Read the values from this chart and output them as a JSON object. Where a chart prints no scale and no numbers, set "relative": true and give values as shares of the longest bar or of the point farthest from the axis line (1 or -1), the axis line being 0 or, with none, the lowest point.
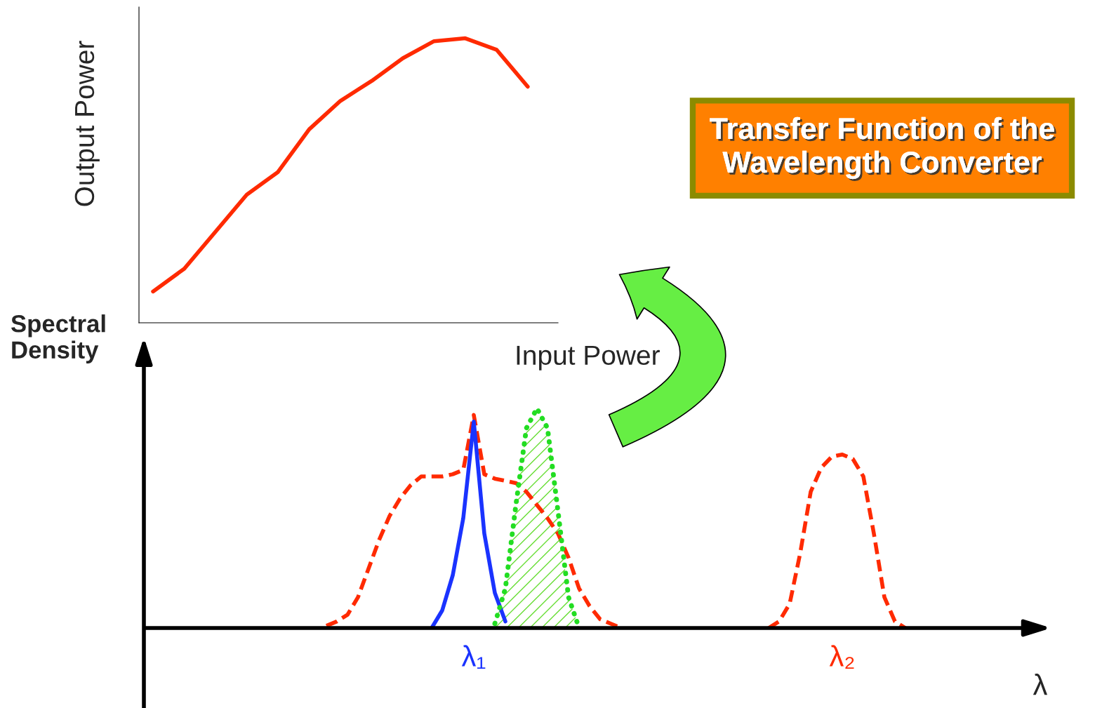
{
  "chart_data": [
    {
      "type": "line",
      "annotations": [
        "Transfer Function of the Wavelength Converter"
      ],
      "xlabel": "Input Power",
      "ylabel": "Output Power",
      "relative": true,
      "categories": [
        null,
        null,
        null,
        null,
        null,
        null,
        null,
        null,
        null,
        null,
        null,
        null,
        null
      ],
      "series": [
        {
          "color": "#ff2a00",
          "values": [
            0.11,
            0.19,
            0.32,
            0.45,
            0.53,
            0.68,
            0.78,
            0.85,
            0.93,
            0.99,
            1.0,
            0.96,
            0.83
          ]
        }
      ]
    },
    {
      "type": "line",
      "xlabel": "λ",
      "ylabel": "Spectral Density",
      "relative": true,
      "categories": [
        null,
        null,
        null,
        null,
        null,
        null,
        null,
        null,
        null,
        null,
        null,
        null,
        null,
        null,
        "λ₁",
        null,
        null,
        null,
        null,
        null,
        null,
        null,
        null,
        null,
        null,
        null,
        null,
        null,
        null,
        null,
        null,
        null,
        null,
        null,
        null,
        null,
        null,
        null,
        null,
        null,
        null,
        null,
        null,
        null,
        null,
        null,
        null,
        null,
        null,
        "λ₂",
        null,
        null,
        null,
        null,
        null,
        null,
        null
      ],
      "series": [
        {
          "type": "line",
          "line_style": "dashed",
          "color": "#ff2a00",
          "values": [
            0.01,
            0.03,
            0.06,
            0.14,
            0.27,
            0.4,
            0.51,
            0.59,
            0.65,
            0.69,
            0.69,
            0.69,
            0.7,
            0.72,
            0.97,
            0.7,
            0.68,
            0.67,
            0.66,
            0.62,
            0.56,
            0.5,
            0.43,
            0.32,
            0.18,
            0.1,
            0.04,
            0.02,
            0,
            null,
            null,
            null,
            null,
            null,
            null,
            null,
            null,
            null,
            null,
            null,
            null,
            null,
            0,
            0.03,
            0.11,
            0.34,
            0.62,
            0.73,
            0.78,
            0.79,
            0.77,
            0.69,
            0.43,
            0.14,
            0.03,
            0,
            null
          ]
        },
        {
          "type": "line",
          "line_style": "solid",
          "color": "#1a33ff",
          "values": [
            null,
            null,
            null,
            null,
            null,
            null,
            null,
            null,
            null,
            null,
            0,
            0.08,
            0.24,
            0.5,
            0.94,
            0.43,
            0.16,
            0.03,
            null,
            null,
            null,
            null,
            null,
            null,
            null,
            null,
            null,
            null,
            null,
            null,
            null,
            null,
            null,
            null,
            null,
            null,
            null,
            null,
            null,
            null,
            null,
            null,
            null,
            null,
            null,
            null,
            null,
            null,
            null,
            null,
            null,
            null,
            null,
            null,
            null,
            null,
            null
          ]
        },
        {
          "type": "area",
          "line_style": "dotted",
          "color": "#22dd22",
          "values": [
            null,
            null,
            null,
            null,
            null,
            null,
            null,
            null,
            null,
            null,
            null,
            null,
            null,
            null,
            null,
            null,
            0.02,
            0.18,
            0.56,
            0.91,
            1.0,
            0.91,
            0.53,
            0.14,
            0,
            null,
            null,
            null,
            null,
            null,
            null,
            null,
            null,
            null,
            null,
            null,
            null,
            null,
            null,
            null,
            null,
            null,
            null,
            null,
            null,
            null,
            null,
            null,
            null,
            null,
            null,
            null,
            null,
            null,
            null,
            null,
            null
          ]
        }
      ]
    }
  ]
}
